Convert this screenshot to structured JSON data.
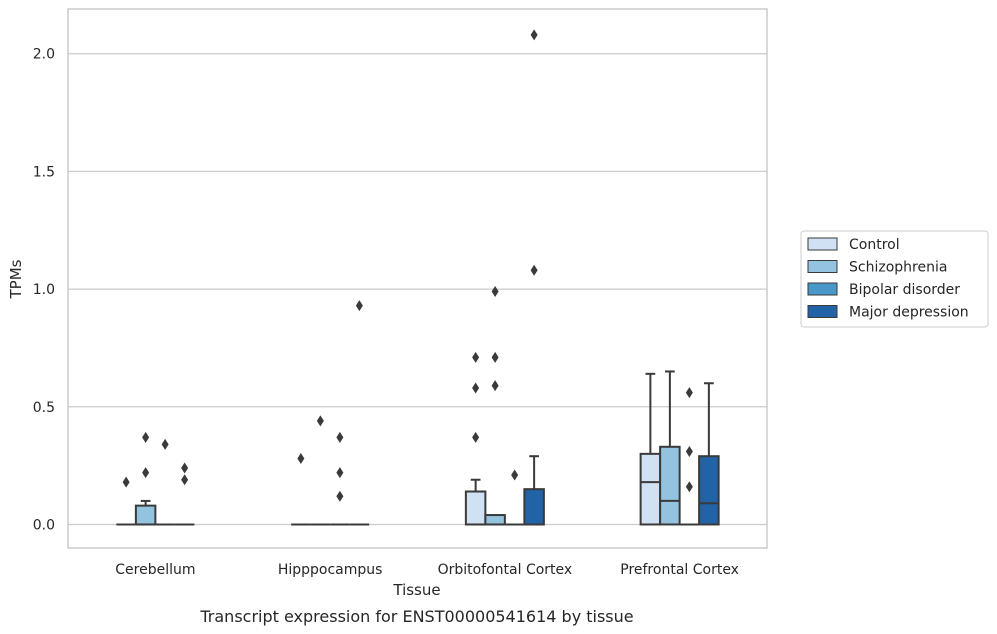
{
  "caption": "Transcript expression for ENST00000541614 by tissue",
  "chart_data": {
    "type": "box",
    "title": "",
    "xlabel": "Tissue",
    "ylabel": "TPMs",
    "ylim": [
      -0.1,
      2.19
    ],
    "yticks": [
      0.0,
      0.5,
      1.0,
      1.5,
      2.0
    ],
    "ytick_labels": [
      "0.0",
      "0.5",
      "1.0",
      "1.5",
      "2.0"
    ],
    "grid": true,
    "legend_position": "right",
    "categories": [
      "Cerebellum",
      "Hipppocampus",
      "Orbitofontal Cortex",
      "Prefrontal Cortex"
    ],
    "series": [
      {
        "name": "Control",
        "color": "#cfe1f2",
        "boxes": [
          {
            "q1": 0,
            "median": 0,
            "q3": 0,
            "whisker_low": 0,
            "whisker_high": 0,
            "outliers": [
              0.18
            ]
          },
          {
            "q1": 0,
            "median": 0,
            "q3": 0,
            "whisker_low": 0,
            "whisker_high": 0,
            "outliers": [
              0.28
            ]
          },
          {
            "q1": 0,
            "median": 0,
            "q3": 0.14,
            "whisker_low": 0,
            "whisker_high": 0.19,
            "outliers": [
              0.37,
              0.58,
              0.71
            ]
          },
          {
            "q1": 0,
            "median": 0.18,
            "q3": 0.3,
            "whisker_low": 0,
            "whisker_high": 0.64,
            "outliers": []
          }
        ]
      },
      {
        "name": "Schizophrenia",
        "color": "#93c3df",
        "boxes": [
          {
            "q1": 0,
            "median": 0,
            "q3": 0.08,
            "whisker_low": 0,
            "whisker_high": 0.1,
            "outliers": [
              0.22,
              0.37
            ]
          },
          {
            "q1": 0,
            "median": 0,
            "q3": 0,
            "whisker_low": 0,
            "whisker_high": 0,
            "outliers": [
              0.44
            ]
          },
          {
            "q1": 0,
            "median": 0,
            "q3": 0.04,
            "whisker_low": 0,
            "whisker_high": 0.04,
            "outliers": [
              0.59,
              0.71,
              0.99
            ]
          },
          {
            "q1": 0,
            "median": 0.1,
            "q3": 0.33,
            "whisker_low": 0,
            "whisker_high": 0.65,
            "outliers": []
          }
        ]
      },
      {
        "name": "Bipolar disorder",
        "color": "#4a98c9",
        "boxes": [
          {
            "q1": 0,
            "median": 0,
            "q3": 0,
            "whisker_low": 0,
            "whisker_high": 0,
            "outliers": [
              0.34
            ]
          },
          {
            "q1": 0,
            "median": 0,
            "q3": 0,
            "whisker_low": 0,
            "whisker_high": 0,
            "outliers": [
              0.12,
              0.22,
              0.37
            ]
          },
          {
            "q1": 0,
            "median": 0,
            "q3": 0,
            "whisker_low": 0,
            "whisker_high": 0,
            "outliers": [
              0.21
            ]
          },
          {
            "q1": 0,
            "median": 0,
            "q3": 0,
            "whisker_low": 0,
            "whisker_high": 0,
            "outliers": [
              0.16,
              0.31,
              0.56
            ]
          }
        ]
      },
      {
        "name": "Major depression",
        "color": "#2163a6",
        "boxes": [
          {
            "q1": 0,
            "median": 0,
            "q3": 0,
            "whisker_low": 0,
            "whisker_high": 0,
            "outliers": [
              0.19,
              0.24
            ]
          },
          {
            "q1": 0,
            "median": 0,
            "q3": 0,
            "whisker_low": 0,
            "whisker_high": 0,
            "outliers": [
              0.93
            ]
          },
          {
            "q1": 0,
            "median": 0,
            "q3": 0.15,
            "whisker_low": 0,
            "whisker_high": 0.29,
            "outliers": [
              1.08,
              2.08
            ]
          },
          {
            "q1": 0,
            "median": 0.09,
            "q3": 0.29,
            "whisker_low": 0,
            "whisker_high": 0.6,
            "outliers": []
          }
        ]
      }
    ]
  }
}
